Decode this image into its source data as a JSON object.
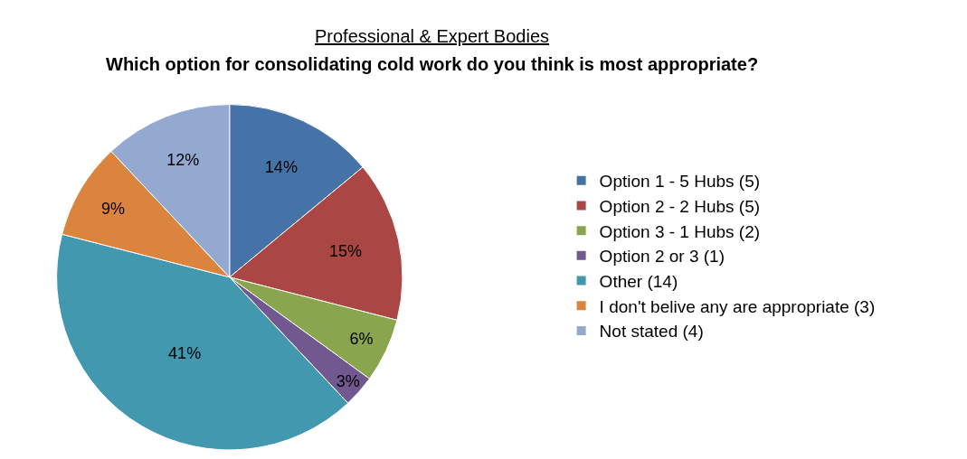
{
  "chart_data": {
    "type": "pie",
    "title": "Professional & Expert Bodies",
    "subtitle": "Which option for consolidating cold work do you think is most appropriate?",
    "categories": [
      "Option 1 - 5 Hubs (5)",
      "Option 2 - 2 Hubs (5)",
      "Option 3 - 1 Hubs (2)",
      "Option 2 or 3 (1)",
      "Other (14)",
      "I don't belive any are appropriate (3)",
      "Not stated (4)"
    ],
    "values": [
      14,
      15,
      6,
      3,
      41,
      9,
      12
    ],
    "value_labels": [
      "14%",
      "15%",
      "6%",
      "3%",
      "41%",
      "9%",
      "12%"
    ],
    "colors": [
      "#4572a7",
      "#aa4643",
      "#89a54e",
      "#71588f",
      "#4198af",
      "#db843d",
      "#93a9cf"
    ],
    "legend": "right"
  }
}
